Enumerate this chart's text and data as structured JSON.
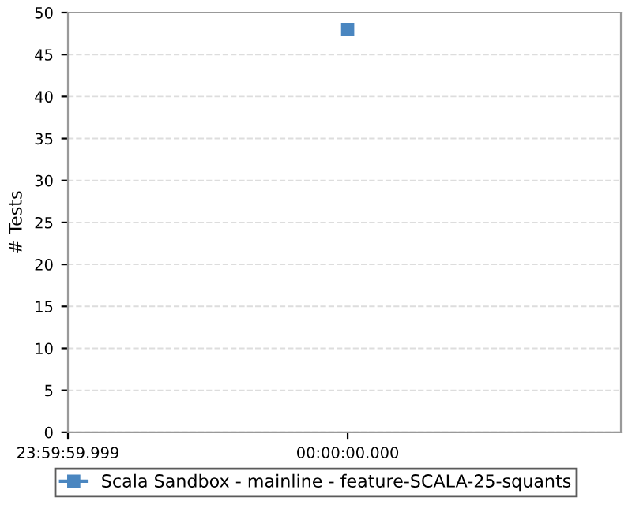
{
  "chart_data": {
    "type": "line",
    "ylabel": "# Tests",
    "categories": [
      "23:59:59.999",
      "00:00:00.000"
    ],
    "series": [
      {
        "name": "Scala Sandbox - mainline - feature-SCALA-25-squants",
        "color": "#4a86c0",
        "values": [
          null,
          48
        ]
      }
    ],
    "ylim": [
      0,
      50
    ],
    "yticks": [
      0,
      5,
      10,
      15,
      20,
      25,
      30,
      35,
      40,
      45,
      50
    ],
    "grid": "y",
    "legend": "bottom",
    "marker": "square",
    "line_style": "solid"
  }
}
